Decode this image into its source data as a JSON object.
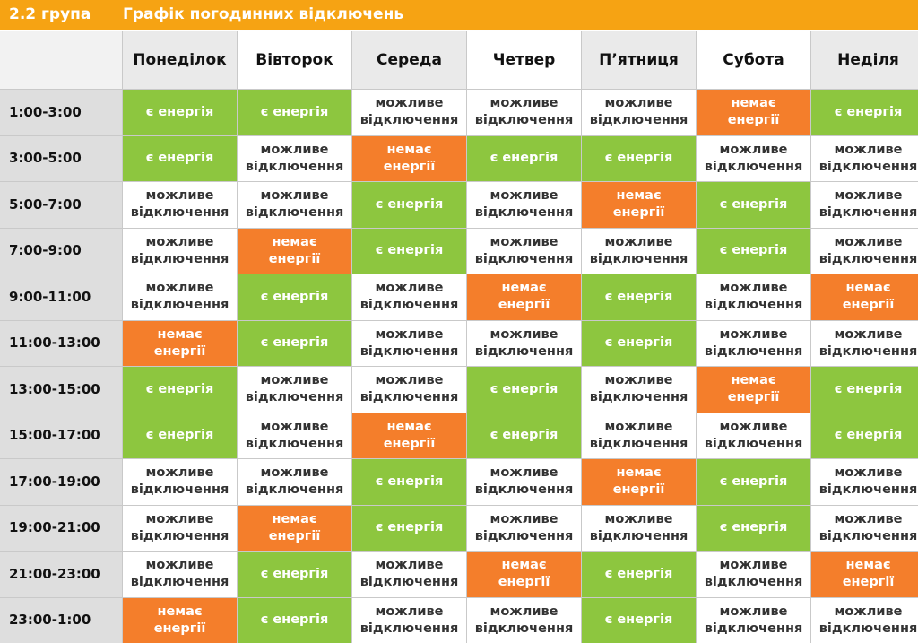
{
  "header": {
    "group": "2.2 група",
    "title": "Графік погодинних відключень"
  },
  "days": [
    "Понеділок",
    "Вівторок",
    "Середа",
    "Четвер",
    "П’ятниця",
    "Субота",
    "Неділя"
  ],
  "status_labels": {
    "yes": "є енергія",
    "maybe": "можливе\nвідключення",
    "no": "немає\nенергії"
  },
  "colors": {
    "header_bar": "#f6a313",
    "yes": "#8dc63f",
    "no": "#f47e2b",
    "maybe": "#ffffff"
  },
  "rows": [
    {
      "time": "1:00-3:00",
      "cells": [
        "yes",
        "yes",
        "maybe",
        "maybe",
        "maybe",
        "no",
        "yes"
      ]
    },
    {
      "time": "3:00-5:00",
      "cells": [
        "yes",
        "maybe",
        "no",
        "yes",
        "yes",
        "maybe",
        "maybe"
      ]
    },
    {
      "time": "5:00-7:00",
      "cells": [
        "maybe",
        "maybe",
        "yes",
        "maybe",
        "no",
        "yes",
        "maybe"
      ]
    },
    {
      "time": "7:00-9:00",
      "cells": [
        "maybe",
        "no",
        "yes",
        "maybe",
        "maybe",
        "yes",
        "maybe"
      ]
    },
    {
      "time": "9:00-11:00",
      "cells": [
        "maybe",
        "yes",
        "maybe",
        "no",
        "yes",
        "maybe",
        "no"
      ]
    },
    {
      "time": "11:00-13:00",
      "cells": [
        "no",
        "yes",
        "maybe",
        "maybe",
        "yes",
        "maybe",
        "maybe"
      ]
    },
    {
      "time": "13:00-15:00",
      "cells": [
        "yes",
        "maybe",
        "maybe",
        "yes",
        "maybe",
        "no",
        "yes"
      ]
    },
    {
      "time": "15:00-17:00",
      "cells": [
        "yes",
        "maybe",
        "no",
        "yes",
        "maybe",
        "maybe",
        "yes"
      ]
    },
    {
      "time": "17:00-19:00",
      "cells": [
        "maybe",
        "maybe",
        "yes",
        "maybe",
        "no",
        "yes",
        "maybe"
      ]
    },
    {
      "time": "19:00-21:00",
      "cells": [
        "maybe",
        "no",
        "yes",
        "maybe",
        "maybe",
        "yes",
        "maybe"
      ]
    },
    {
      "time": "21:00-23:00",
      "cells": [
        "maybe",
        "yes",
        "maybe",
        "no",
        "yes",
        "maybe",
        "no"
      ]
    },
    {
      "time": "23:00-1:00",
      "cells": [
        "no",
        "yes",
        "maybe",
        "maybe",
        "yes",
        "maybe",
        "maybe"
      ]
    }
  ]
}
